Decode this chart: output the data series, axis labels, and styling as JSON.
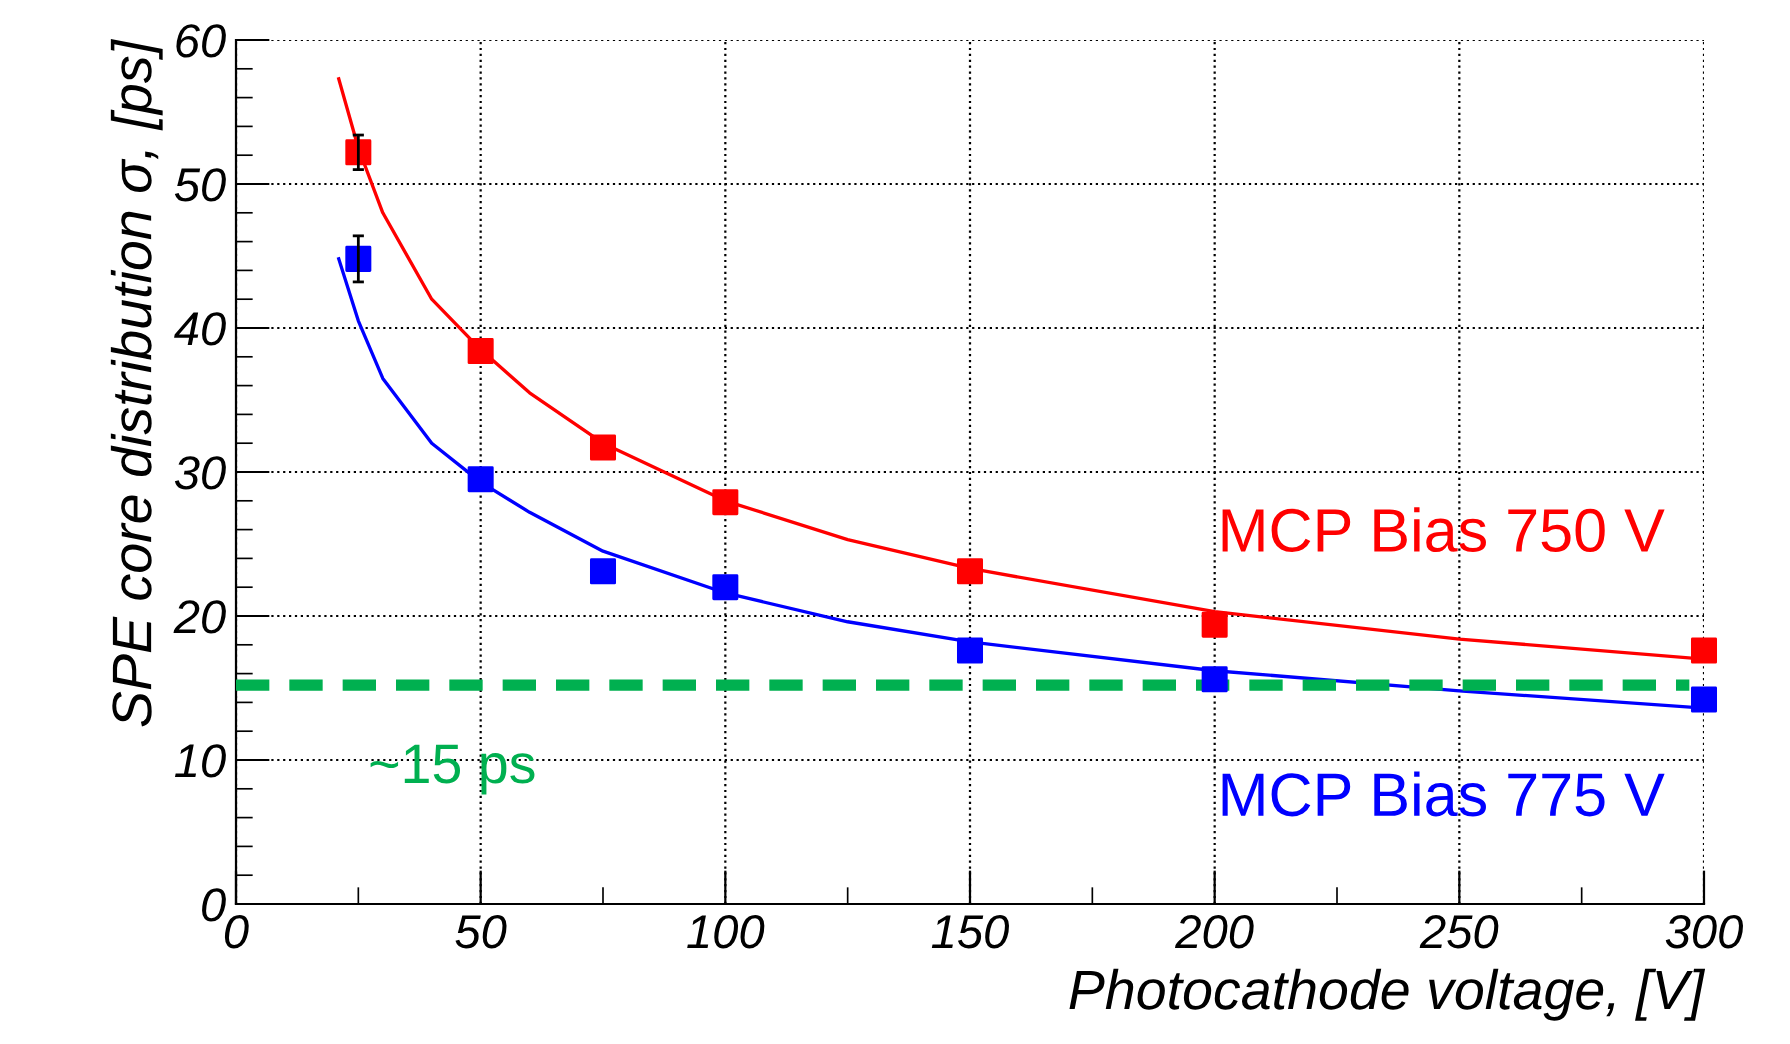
{
  "chart_data": {
    "type": "scatter",
    "xlabel": "Photocathode voltage, [V]",
    "ylabel": "SPE core distribution σ, [ps]",
    "xlim": [
      0,
      300
    ],
    "ylim": [
      0,
      60
    ],
    "xticks": [
      0,
      50,
      100,
      150,
      200,
      250,
      300
    ],
    "yticks": [
      0,
      10,
      20,
      30,
      40,
      50,
      60
    ],
    "grid": true,
    "marker": "square",
    "legend": false,
    "series": [
      {
        "name": "MCP Bias 750 V",
        "color": "#ff0000",
        "x": [
          25,
          50,
          75,
          100,
          150,
          200,
          300
        ],
        "values": [
          52.2,
          38.4,
          31.7,
          27.9,
          23.1,
          19.4,
          17.6
        ],
        "errors": [
          1.2,
          null,
          null,
          null,
          null,
          null,
          null
        ]
      },
      {
        "name": "MCP Bias 775 V",
        "color": "#0000ff",
        "x": [
          25,
          50,
          75,
          100,
          150,
          200,
          300
        ],
        "values": [
          44.8,
          29.5,
          23.1,
          22.0,
          17.6,
          15.6,
          14.2
        ],
        "errors": [
          1.6,
          null,
          null,
          null,
          null,
          null,
          null
        ]
      },
      {
        "color": "#ff0000",
        "type": "line",
        "marker": "none",
        "x": [
          21,
          25,
          30,
          40,
          50,
          60,
          75,
          100,
          125,
          150,
          200,
          250,
          300
        ],
        "values": [
          57.3,
          52.5,
          48,
          42,
          38.5,
          35.5,
          32,
          28,
          25.3,
          23.3,
          20.3,
          18.4,
          17.0
        ]
      },
      {
        "color": "#0000ff",
        "type": "line",
        "marker": "none",
        "x": [
          21,
          25,
          30,
          40,
          50,
          60,
          75,
          100,
          125,
          150,
          200,
          250,
          300
        ],
        "values": [
          44.8,
          40.5,
          36.5,
          32,
          29.3,
          27.2,
          24.5,
          21.6,
          19.6,
          18.2,
          16.2,
          14.8,
          13.6
        ]
      }
    ],
    "ref_lines": [
      {
        "axis": "y",
        "value": 15.2,
        "label": "~15 ps",
        "color": "#00b050",
        "line_style": "dashed"
      }
    ]
  }
}
